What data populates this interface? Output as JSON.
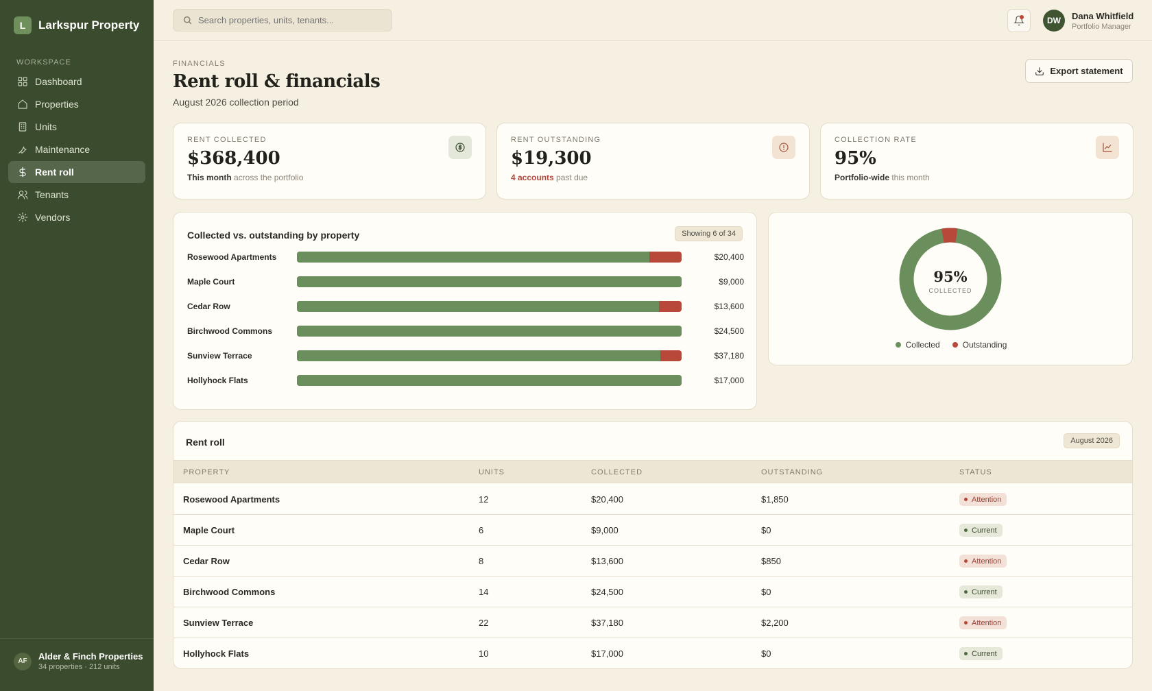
{
  "brand": {
    "initial": "L",
    "name": "Larkspur Property"
  },
  "sidebar": {
    "section_label": "WORKSPACE",
    "items": [
      {
        "label": "Dashboard",
        "icon": "grid-icon"
      },
      {
        "label": "Properties",
        "icon": "home-icon"
      },
      {
        "label": "Units",
        "icon": "building-icon"
      },
      {
        "label": "Maintenance",
        "icon": "wrench-icon"
      },
      {
        "label": "Rent roll",
        "icon": "dollar-icon",
        "active": true
      },
      {
        "label": "Tenants",
        "icon": "users-icon"
      },
      {
        "label": "Vendors",
        "icon": "gear-icon"
      }
    ],
    "org": {
      "initials": "AF",
      "name": "Alder & Finch Properties",
      "detail": "34 properties · 212 units"
    }
  },
  "topbar": {
    "search_placeholder": "Search properties, units, tenants...",
    "user": {
      "initials": "DW",
      "name": "Dana Whitfield",
      "role": "Portfolio Manager"
    }
  },
  "page": {
    "crumb": "FINANCIALS",
    "title": "Rent roll & financials",
    "subtitle": "August 2026 collection period",
    "export_label": "Export statement"
  },
  "stats": [
    {
      "label": "RENT COLLECTED",
      "value": "$368,400",
      "note_strong": "This month",
      "note_rest": "across the portfolio",
      "icon": "dollar-circle-icon",
      "icon_bg": "#e4e8da",
      "icon_color": "#3b4b2d"
    },
    {
      "label": "RENT OUTSTANDING",
      "value": "$19,300",
      "note_strong": "4 accounts",
      "note_rest": "past due",
      "icon": "alert-circle-icon",
      "icon_bg": "#f3e3d3",
      "icon_color": "#a0553c"
    },
    {
      "label": "COLLECTION RATE",
      "value": "95%",
      "note_strong": "Portfolio-wide",
      "note_rest": "this month",
      "icon": "trend-chart-icon",
      "icon_bg": "#f3e3d3",
      "icon_color": "#a0553c"
    }
  ],
  "bars": {
    "title": "Collected vs. outstanding by property",
    "pill": "Showing 6 of 34",
    "colors": {
      "collected": "#6b8f5c",
      "outstanding": "#b8483a"
    }
  },
  "donut": {
    "pct_label": "95%",
    "sub_label": "COLLECTED",
    "collected_share": 0.95,
    "legend": [
      {
        "label": "Collected",
        "color": "#6b8f5c"
      },
      {
        "label": "Outstanding",
        "color": "#b8483a"
      }
    ]
  },
  "table": {
    "title": "Rent roll",
    "period": "August 2026",
    "columns": [
      "PROPERTY",
      "UNITS",
      "COLLECTED",
      "OUTSTANDING",
      "STATUS"
    ]
  },
  "chart_data": {
    "type": "bar",
    "categories": [
      "Rosewood Apartments",
      "Maple Court",
      "Cedar Row",
      "Birchwood Commons",
      "Sunview Terrace",
      "Hollyhock Flats"
    ],
    "series": [
      {
        "name": "Collected",
        "values": [
          20400,
          9000,
          13600,
          24500,
          37180,
          17000
        ]
      },
      {
        "name": "Outstanding",
        "values": [
          1850,
          0,
          850,
          0,
          2200,
          0
        ]
      }
    ],
    "value_labels": [
      "$20,400",
      "$9,000",
      "$13,600",
      "$24,500",
      "$37,180",
      "$17,000"
    ]
  },
  "rows": [
    {
      "property": "Rosewood Apartments",
      "units": "12",
      "collected": "$20,400",
      "outstanding": "$1,850",
      "status": "Attention"
    },
    {
      "property": "Maple Court",
      "units": "6",
      "collected": "$9,000",
      "outstanding": "$0",
      "status": "Current"
    },
    {
      "property": "Cedar Row",
      "units": "8",
      "collected": "$13,600",
      "outstanding": "$850",
      "status": "Attention"
    },
    {
      "property": "Birchwood Commons",
      "units": "14",
      "collected": "$24,500",
      "outstanding": "$0",
      "status": "Current"
    },
    {
      "property": "Sunview Terrace",
      "units": "22",
      "collected": "$37,180",
      "outstanding": "$2,200",
      "status": "Attention"
    },
    {
      "property": "Hollyhock Flats",
      "units": "10",
      "collected": "$17,000",
      "outstanding": "$0",
      "status": "Current"
    }
  ]
}
